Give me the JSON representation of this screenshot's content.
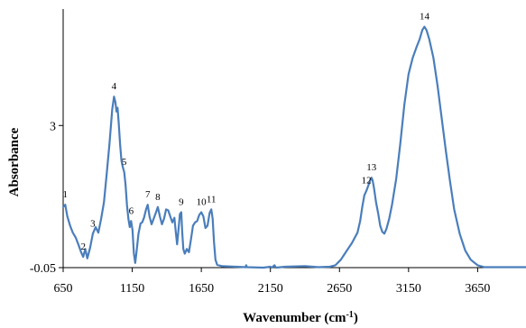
{
  "chart_data": {
    "type": "line",
    "title": "",
    "xlabel": "Wavenumber (cm",
    "xlabel_sup": "-1",
    "xlabel_close": ")",
    "ylabel": "Absorbance",
    "xlim": [
      650,
      4000
    ],
    "ylim": [
      -0.05,
      5.5
    ],
    "x_ticks": [
      {
        "value": 650,
        "label": "650"
      },
      {
        "value": 1150,
        "label": "1150"
      },
      {
        "value": 1650,
        "label": "1650"
      },
      {
        "value": 2150,
        "label": "2150"
      },
      {
        "value": 2650,
        "label": "2650"
      },
      {
        "value": 3150,
        "label": "3150"
      },
      {
        "value": 3650,
        "label": "3650"
      }
    ],
    "y_ticks": [
      {
        "value": -0.05,
        "label": "-0.05"
      },
      {
        "value": 3,
        "label": "3"
      }
    ],
    "grid": false,
    "legend": "none",
    "line_color": "#4a7ebb",
    "series": [
      {
        "points": [
          [
            650,
            1.25
          ],
          [
            665,
            1.3
          ],
          [
            680,
            1.05
          ],
          [
            700,
            0.85
          ],
          [
            720,
            0.7
          ],
          [
            740,
            0.6
          ],
          [
            760,
            0.45
          ],
          [
            780,
            0.28
          ],
          [
            795,
            0.18
          ],
          [
            810,
            0.35
          ],
          [
            825,
            0.15
          ],
          [
            845,
            0.38
          ],
          [
            865,
            0.68
          ],
          [
            885,
            0.82
          ],
          [
            905,
            0.7
          ],
          [
            925,
            1.0
          ],
          [
            945,
            1.35
          ],
          [
            965,
            1.95
          ],
          [
            985,
            2.6
          ],
          [
            1005,
            3.35
          ],
          [
            1018,
            3.62
          ],
          [
            1028,
            3.5
          ],
          [
            1036,
            3.3
          ],
          [
            1044,
            3.38
          ],
          [
            1052,
            3.05
          ],
          [
            1062,
            2.6
          ],
          [
            1072,
            2.25
          ],
          [
            1082,
            2.1
          ],
          [
            1092,
            2.0
          ],
          [
            1102,
            1.72
          ],
          [
            1112,
            1.3
          ],
          [
            1122,
            1.0
          ],
          [
            1132,
            0.82
          ],
          [
            1142,
            0.95
          ],
          [
            1152,
            0.75
          ],
          [
            1162,
            0.25
          ],
          [
            1172,
            0.05
          ],
          [
            1182,
            0.32
          ],
          [
            1195,
            0.68
          ],
          [
            1210,
            0.9
          ],
          [
            1222,
            0.92
          ],
          [
            1235,
            1.02
          ],
          [
            1250,
            1.2
          ],
          [
            1262,
            1.3
          ],
          [
            1275,
            1.05
          ],
          [
            1290,
            0.88
          ],
          [
            1305,
            1.0
          ],
          [
            1320,
            1.12
          ],
          [
            1335,
            1.25
          ],
          [
            1350,
            1.05
          ],
          [
            1365,
            0.88
          ],
          [
            1380,
            1.0
          ],
          [
            1395,
            1.2
          ],
          [
            1410,
            1.18
          ],
          [
            1425,
            1.05
          ],
          [
            1440,
            0.92
          ],
          [
            1455,
            1.02
          ],
          [
            1465,
            0.72
          ],
          [
            1475,
            0.45
          ],
          [
            1485,
            0.78
          ],
          [
            1495,
            1.1
          ],
          [
            1505,
            1.14
          ],
          [
            1512,
            0.7
          ],
          [
            1520,
            0.35
          ],
          [
            1530,
            0.25
          ],
          [
            1545,
            0.35
          ],
          [
            1560,
            0.28
          ],
          [
            1575,
            0.55
          ],
          [
            1590,
            0.85
          ],
          [
            1605,
            0.92
          ],
          [
            1620,
            0.95
          ],
          [
            1635,
            1.08
          ],
          [
            1650,
            1.14
          ],
          [
            1665,
            1.05
          ],
          [
            1680,
            0.8
          ],
          [
            1695,
            0.85
          ],
          [
            1710,
            1.12
          ],
          [
            1722,
            1.2
          ],
          [
            1732,
            1.0
          ],
          [
            1742,
            0.5
          ],
          [
            1752,
            0.12
          ],
          [
            1765,
            0.01
          ],
          [
            1800,
            -0.02
          ],
          [
            1900,
            -0.03
          ],
          [
            1970,
            -0.04
          ],
          [
            1975,
            0.0
          ],
          [
            1980,
            -0.04
          ],
          [
            2100,
            -0.05
          ],
          [
            2150,
            -0.03
          ],
          [
            2160,
            -0.05
          ],
          [
            2180,
            0.0
          ],
          [
            2190,
            -0.05
          ],
          [
            2260,
            -0.03
          ],
          [
            2400,
            -0.02
          ],
          [
            2500,
            -0.04
          ],
          [
            2580,
            -0.03
          ],
          [
            2620,
            0.0
          ],
          [
            2660,
            0.12
          ],
          [
            2700,
            0.3
          ],
          [
            2740,
            0.48
          ],
          [
            2780,
            0.7
          ],
          [
            2800,
            0.95
          ],
          [
            2815,
            1.25
          ],
          [
            2830,
            1.5
          ],
          [
            2845,
            1.6
          ],
          [
            2860,
            1.72
          ],
          [
            2872,
            1.82
          ],
          [
            2882,
            1.88
          ],
          [
            2890,
            1.82
          ],
          [
            2900,
            1.65
          ],
          [
            2915,
            1.35
          ],
          [
            2930,
            1.12
          ],
          [
            2945,
            0.85
          ],
          [
            2960,
            0.72
          ],
          [
            2975,
            0.68
          ],
          [
            2990,
            0.78
          ],
          [
            3010,
            1.0
          ],
          [
            3030,
            1.3
          ],
          [
            3060,
            1.85
          ],
          [
            3090,
            2.6
          ],
          [
            3120,
            3.45
          ],
          [
            3150,
            4.1
          ],
          [
            3180,
            4.45
          ],
          [
            3210,
            4.7
          ],
          [
            3230,
            4.85
          ],
          [
            3250,
            5.05
          ],
          [
            3265,
            5.12
          ],
          [
            3280,
            5.05
          ],
          [
            3300,
            4.85
          ],
          [
            3330,
            4.45
          ],
          [
            3360,
            3.85
          ],
          [
            3390,
            3.15
          ],
          [
            3420,
            2.45
          ],
          [
            3450,
            1.8
          ],
          [
            3480,
            1.2
          ],
          [
            3520,
            0.68
          ],
          [
            3560,
            0.32
          ],
          [
            3600,
            0.12
          ],
          [
            3650,
            0.0
          ],
          [
            3700,
            -0.04
          ],
          [
            3850,
            -0.04
          ],
          [
            4000,
            -0.04
          ]
        ]
      }
    ],
    "annotations": [
      {
        "label": "1",
        "x": 665,
        "y": 1.3
      },
      {
        "label": "2",
        "x": 795,
        "y": 0.18
      },
      {
        "label": "3",
        "x": 865,
        "y": 0.68
      },
      {
        "label": "4",
        "x": 1018,
        "y": 3.62
      },
      {
        "label": "5",
        "x": 1092,
        "y": 2.0
      },
      {
        "label": "6",
        "x": 1142,
        "y": 0.95
      },
      {
        "label": "7",
        "x": 1262,
        "y": 1.3
      },
      {
        "label": "8",
        "x": 1335,
        "y": 1.25
      },
      {
        "label": "9",
        "x": 1505,
        "y": 1.14
      },
      {
        "label": "10",
        "x": 1650,
        "y": 1.14
      },
      {
        "label": "11",
        "x": 1722,
        "y": 1.2
      },
      {
        "label": "12",
        "x": 2845,
        "y": 1.6
      },
      {
        "label": "13",
        "x": 2882,
        "y": 1.88
      },
      {
        "label": "14",
        "x": 3265,
        "y": 5.12
      }
    ]
  }
}
